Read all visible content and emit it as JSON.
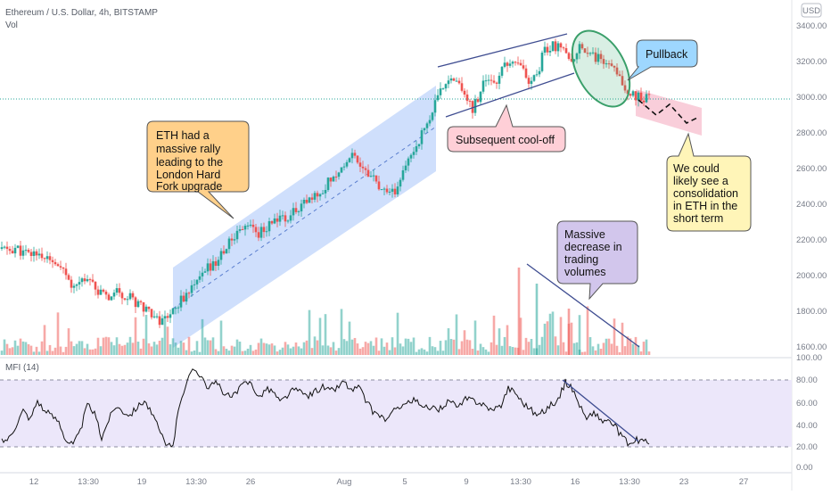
{
  "header": {
    "symbol_line": "Ethereum / U.S. Dollar, 4h, BITSTAMP",
    "vol_label": "Vol",
    "currency_badge": "USD"
  },
  "chart_data": {
    "type": "candlestick",
    "instrument": "Ethereum / U.S. Dollar",
    "interval": "4h",
    "exchange": "BITSTAMP",
    "price_axis": {
      "ticks": [
        "3400.00",
        "3200.00",
        "3000.00",
        "2800.00",
        "2600.00",
        "2400.00",
        "2200.00",
        "2000.00",
        "1800.00",
        "1600.00"
      ],
      "range": [
        1590,
        3440
      ]
    },
    "time_axis": {
      "ticks": [
        "12",
        "13:30",
        "19",
        "13:30",
        "26",
        "Aug",
        "5",
        "9",
        "13:30",
        "16",
        "13:30",
        "23",
        "27"
      ]
    },
    "current_price_line": 3005,
    "price_path": [
      [
        0,
        2165
      ],
      [
        4,
        2155
      ],
      [
        8,
        2170
      ],
      [
        12,
        2140
      ],
      [
        16,
        2130
      ],
      [
        20,
        2150
      ],
      [
        24,
        2110
      ],
      [
        28,
        2090
      ],
      [
        32,
        2050
      ],
      [
        36,
        2010
      ],
      [
        40,
        1960
      ],
      [
        44,
        1990
      ],
      [
        48,
        2020
      ],
      [
        52,
        1960
      ],
      [
        56,
        1900
      ],
      [
        60,
        1890
      ],
      [
        64,
        1940
      ],
      [
        68,
        1910
      ],
      [
        72,
        1890
      ],
      [
        76,
        1860
      ],
      [
        80,
        1840
      ],
      [
        84,
        1810
      ],
      [
        88,
        1760
      ],
      [
        92,
        1780
      ],
      [
        96,
        1830
      ],
      [
        100,
        1870
      ],
      [
        104,
        1920
      ],
      [
        108,
        1950
      ],
      [
        112,
        2010
      ],
      [
        116,
        2060
      ],
      [
        120,
        2090
      ],
      [
        124,
        2150
      ],
      [
        128,
        2200
      ],
      [
        132,
        2260
      ],
      [
        136,
        2300
      ],
      [
        140,
        2300
      ],
      [
        144,
        2250
      ],
      [
        148,
        2280
      ],
      [
        152,
        2320
      ],
      [
        156,
        2340
      ],
      [
        160,
        2330
      ],
      [
        164,
        2370
      ],
      [
        168,
        2420
      ],
      [
        172,
        2430
      ],
      [
        176,
        2460
      ],
      [
        180,
        2500
      ],
      [
        184,
        2560
      ],
      [
        188,
        2590
      ],
      [
        192,
        2640
      ],
      [
        196,
        2700
      ],
      [
        200,
        2660
      ],
      [
        204,
        2610
      ],
      [
        208,
        2560
      ],
      [
        212,
        2500
      ],
      [
        216,
        2460
      ],
      [
        220,
        2480
      ],
      [
        224,
        2560
      ],
      [
        228,
        2660
      ],
      [
        232,
        2740
      ],
      [
        236,
        2820
      ],
      [
        240,
        2900
      ],
      [
        244,
        3000
      ],
      [
        248,
        3080
      ],
      [
        252,
        3150
      ],
      [
        256,
        3080
      ],
      [
        260,
        3030
      ],
      [
        264,
        2950
      ],
      [
        268,
        3040
      ],
      [
        272,
        3120
      ],
      [
        276,
        3080
      ],
      [
        280,
        3150
      ],
      [
        284,
        3230
      ],
      [
        288,
        3200
      ],
      [
        292,
        3180
      ],
      [
        296,
        3090
      ],
      [
        300,
        3140
      ],
      [
        304,
        3270
      ],
      [
        308,
        3310
      ],
      [
        312,
        3290
      ],
      [
        316,
        3250
      ],
      [
        320,
        3190
      ],
      [
        324,
        3310
      ],
      [
        328,
        3280
      ],
      [
        332,
        3250
      ],
      [
        336,
        3220
      ],
      [
        340,
        3180
      ],
      [
        344,
        3150
      ],
      [
        348,
        3080
      ],
      [
        352,
        3040
      ],
      [
        356,
        3020
      ],
      [
        360,
        3000
      ],
      [
        363,
        3010
      ]
    ],
    "volume_pane": {
      "label": "Vol",
      "axis_tick": "100.00",
      "up_color": "#26a69a",
      "down_color": "#ef5350"
    },
    "mfi_pane": {
      "label": "MFI (14)",
      "ticks": [
        "80.00",
        "60.00",
        "40.00",
        "20.00",
        "0.00"
      ],
      "range": [
        0,
        100
      ],
      "band": [
        20,
        80
      ],
      "values": [
        [
          0,
          25
        ],
        [
          4,
          28
        ],
        [
          8,
          40
        ],
        [
          12,
          53
        ],
        [
          16,
          45
        ],
        [
          20,
          62
        ],
        [
          24,
          52
        ],
        [
          28,
          48
        ],
        [
          32,
          43
        ],
        [
          36,
          26
        ],
        [
          40,
          22
        ],
        [
          44,
          34
        ],
        [
          48,
          58
        ],
        [
          52,
          50
        ],
        [
          56,
          28
        ],
        [
          60,
          45
        ],
        [
          64,
          57
        ],
        [
          68,
          52
        ],
        [
          72,
          49
        ],
        [
          76,
          56
        ],
        [
          80,
          62
        ],
        [
          84,
          50
        ],
        [
          88,
          36
        ],
        [
          92,
          21
        ],
        [
          96,
          22
        ],
        [
          100,
          61
        ],
        [
          104,
          80
        ],
        [
          108,
          90
        ],
        [
          112,
          84
        ],
        [
          116,
          72
        ],
        [
          120,
          78
        ],
        [
          124,
          70
        ],
        [
          128,
          64
        ],
        [
          132,
          69
        ],
        [
          136,
          77
        ],
        [
          140,
          78
        ],
        [
          144,
          64
        ],
        [
          148,
          72
        ],
        [
          152,
          70
        ],
        [
          156,
          60
        ],
        [
          160,
          66
        ],
        [
          164,
          72
        ],
        [
          168,
          68
        ],
        [
          172,
          66
        ],
        [
          176,
          70
        ],
        [
          180,
          74
        ],
        [
          184,
          70
        ],
        [
          188,
          73
        ],
        [
          192,
          79
        ],
        [
          196,
          70
        ],
        [
          200,
          74
        ],
        [
          204,
          62
        ],
        [
          208,
          52
        ],
        [
          212,
          48
        ],
        [
          216,
          44
        ],
        [
          220,
          52
        ],
        [
          224,
          58
        ],
        [
          228,
          60
        ],
        [
          232,
          62
        ],
        [
          236,
          54
        ],
        [
          240,
          56
        ],
        [
          244,
          52
        ],
        [
          248,
          58
        ],
        [
          252,
          62
        ],
        [
          256,
          54
        ],
        [
          260,
          63
        ],
        [
          264,
          62
        ],
        [
          268,
          60
        ],
        [
          272,
          56
        ],
        [
          276,
          52
        ],
        [
          280,
          58
        ],
        [
          284,
          73
        ],
        [
          288,
          69
        ],
        [
          292,
          60
        ],
        [
          296,
          55
        ],
        [
          300,
          48
        ],
        [
          304,
          52
        ],
        [
          308,
          58
        ],
        [
          312,
          62
        ],
        [
          316,
          78
        ],
        [
          320,
          72
        ],
        [
          324,
          58
        ],
        [
          328,
          44
        ],
        [
          332,
          52
        ],
        [
          336,
          43
        ],
        [
          340,
          44
        ],
        [
          344,
          38
        ],
        [
          348,
          28
        ],
        [
          352,
          22
        ],
        [
          356,
          26
        ],
        [
          360,
          25
        ],
        [
          363,
          24
        ]
      ]
    },
    "annotations": [
      {
        "id": "rally",
        "text": [
          "ETH had a",
          "massive rally",
          "leading to the",
          "London Hard",
          "Fork upgrade"
        ],
        "fill": "#ffd08a",
        "stroke": "#555555"
      },
      {
        "id": "cooloff",
        "text": [
          "Subsequent cool-off"
        ],
        "fill": "#ffcfd7",
        "stroke": "#555555"
      },
      {
        "id": "pullback",
        "text": [
          "Pullback"
        ],
        "fill": "#9ed7ff",
        "stroke": "#555555"
      },
      {
        "id": "consolidation",
        "text": [
          "We could",
          "likely see a",
          "consolidation",
          "in ETH in the",
          "short term"
        ],
        "fill": "#fff5b8",
        "stroke": "#555555"
      },
      {
        "id": "volumes",
        "text": [
          "Massive",
          "decrease in",
          "trading",
          "volumes"
        ],
        "fill": "#d2c6ec",
        "stroke": "#555555"
      }
    ],
    "colors": {
      "up": "#26a69a",
      "down": "#ef5350",
      "channel_fill": "#bcd3fb",
      "trend_line": "#3f4d91",
      "ellipse": "#3a9f6a",
      "consolidation_box": "#f8c6d4",
      "mfi_band": "#ece7fa",
      "mfi_line": "#111111",
      "price_line": "#26a69a"
    }
  }
}
